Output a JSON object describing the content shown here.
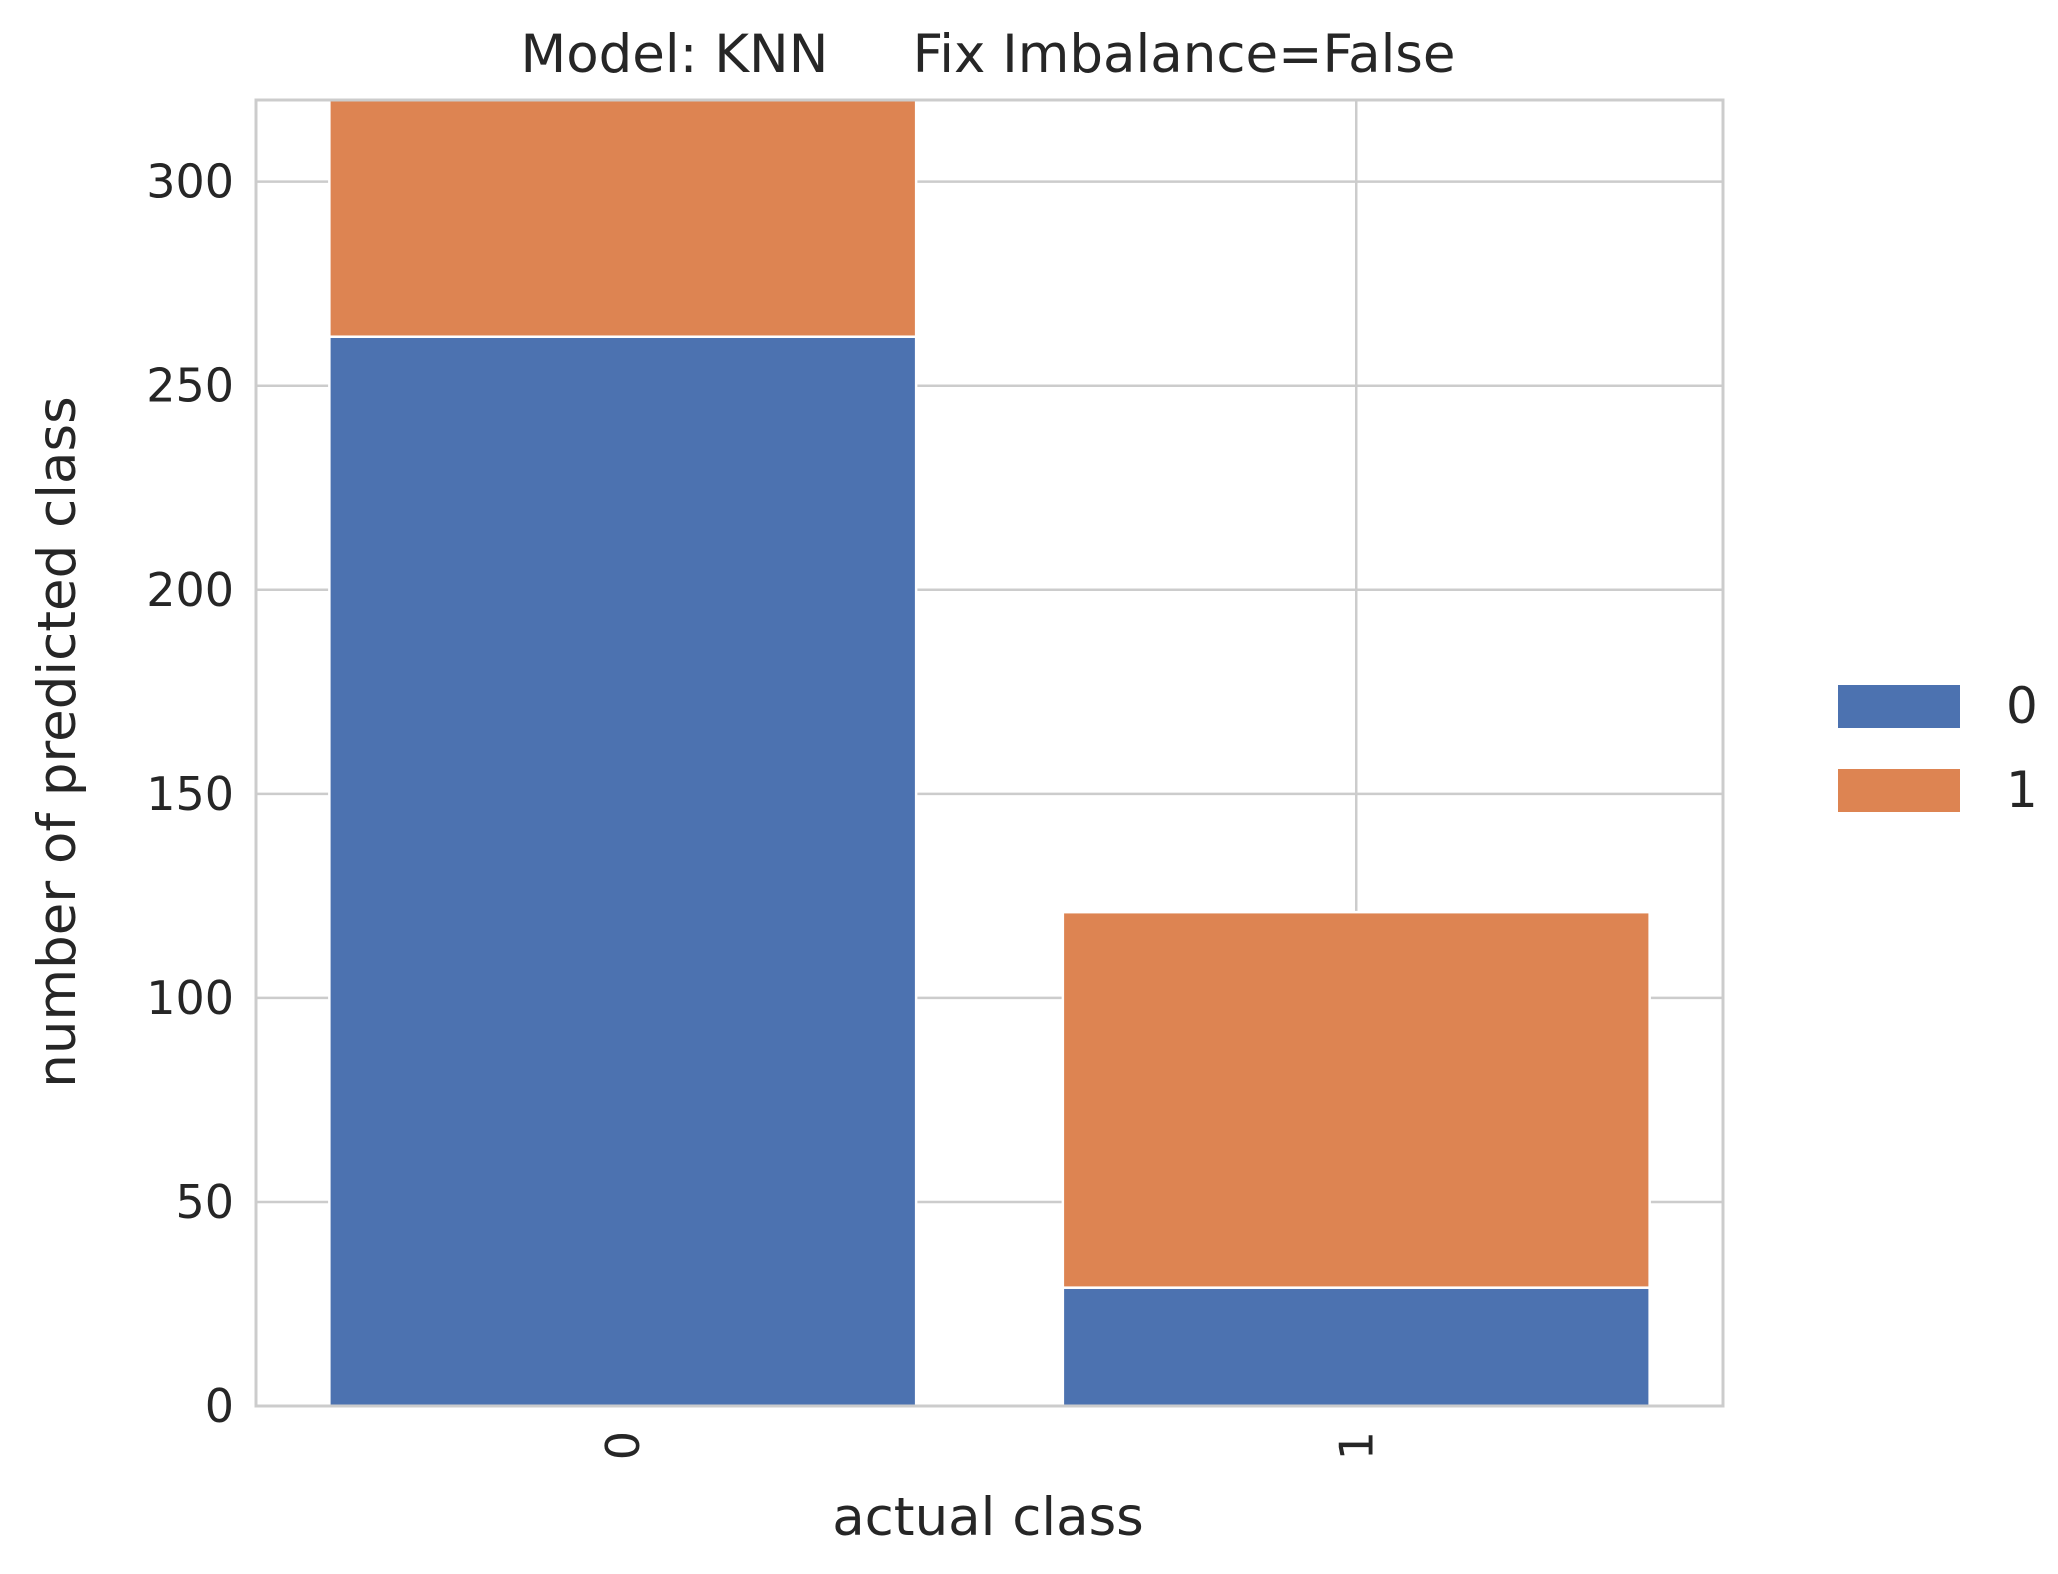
{
  "chart_data": {
    "type": "bar",
    "stacked": true,
    "title": "Model: KNN     Fix Imbalance=False",
    "xlabel": "actual class",
    "ylabel": "number of predicted class",
    "categories": [
      "0",
      "1"
    ],
    "series": [
      {
        "name": "0",
        "values": [
          262,
          29
        ],
        "color": "#4c72b0"
      },
      {
        "name": "1",
        "values": [
          58,
          92
        ],
        "color": "#dd8452"
      }
    ],
    "ylim": [
      0,
      320
    ],
    "yticks": [
      0,
      50,
      100,
      150,
      200,
      250,
      300
    ],
    "grid": true,
    "legend_position": "right"
  }
}
